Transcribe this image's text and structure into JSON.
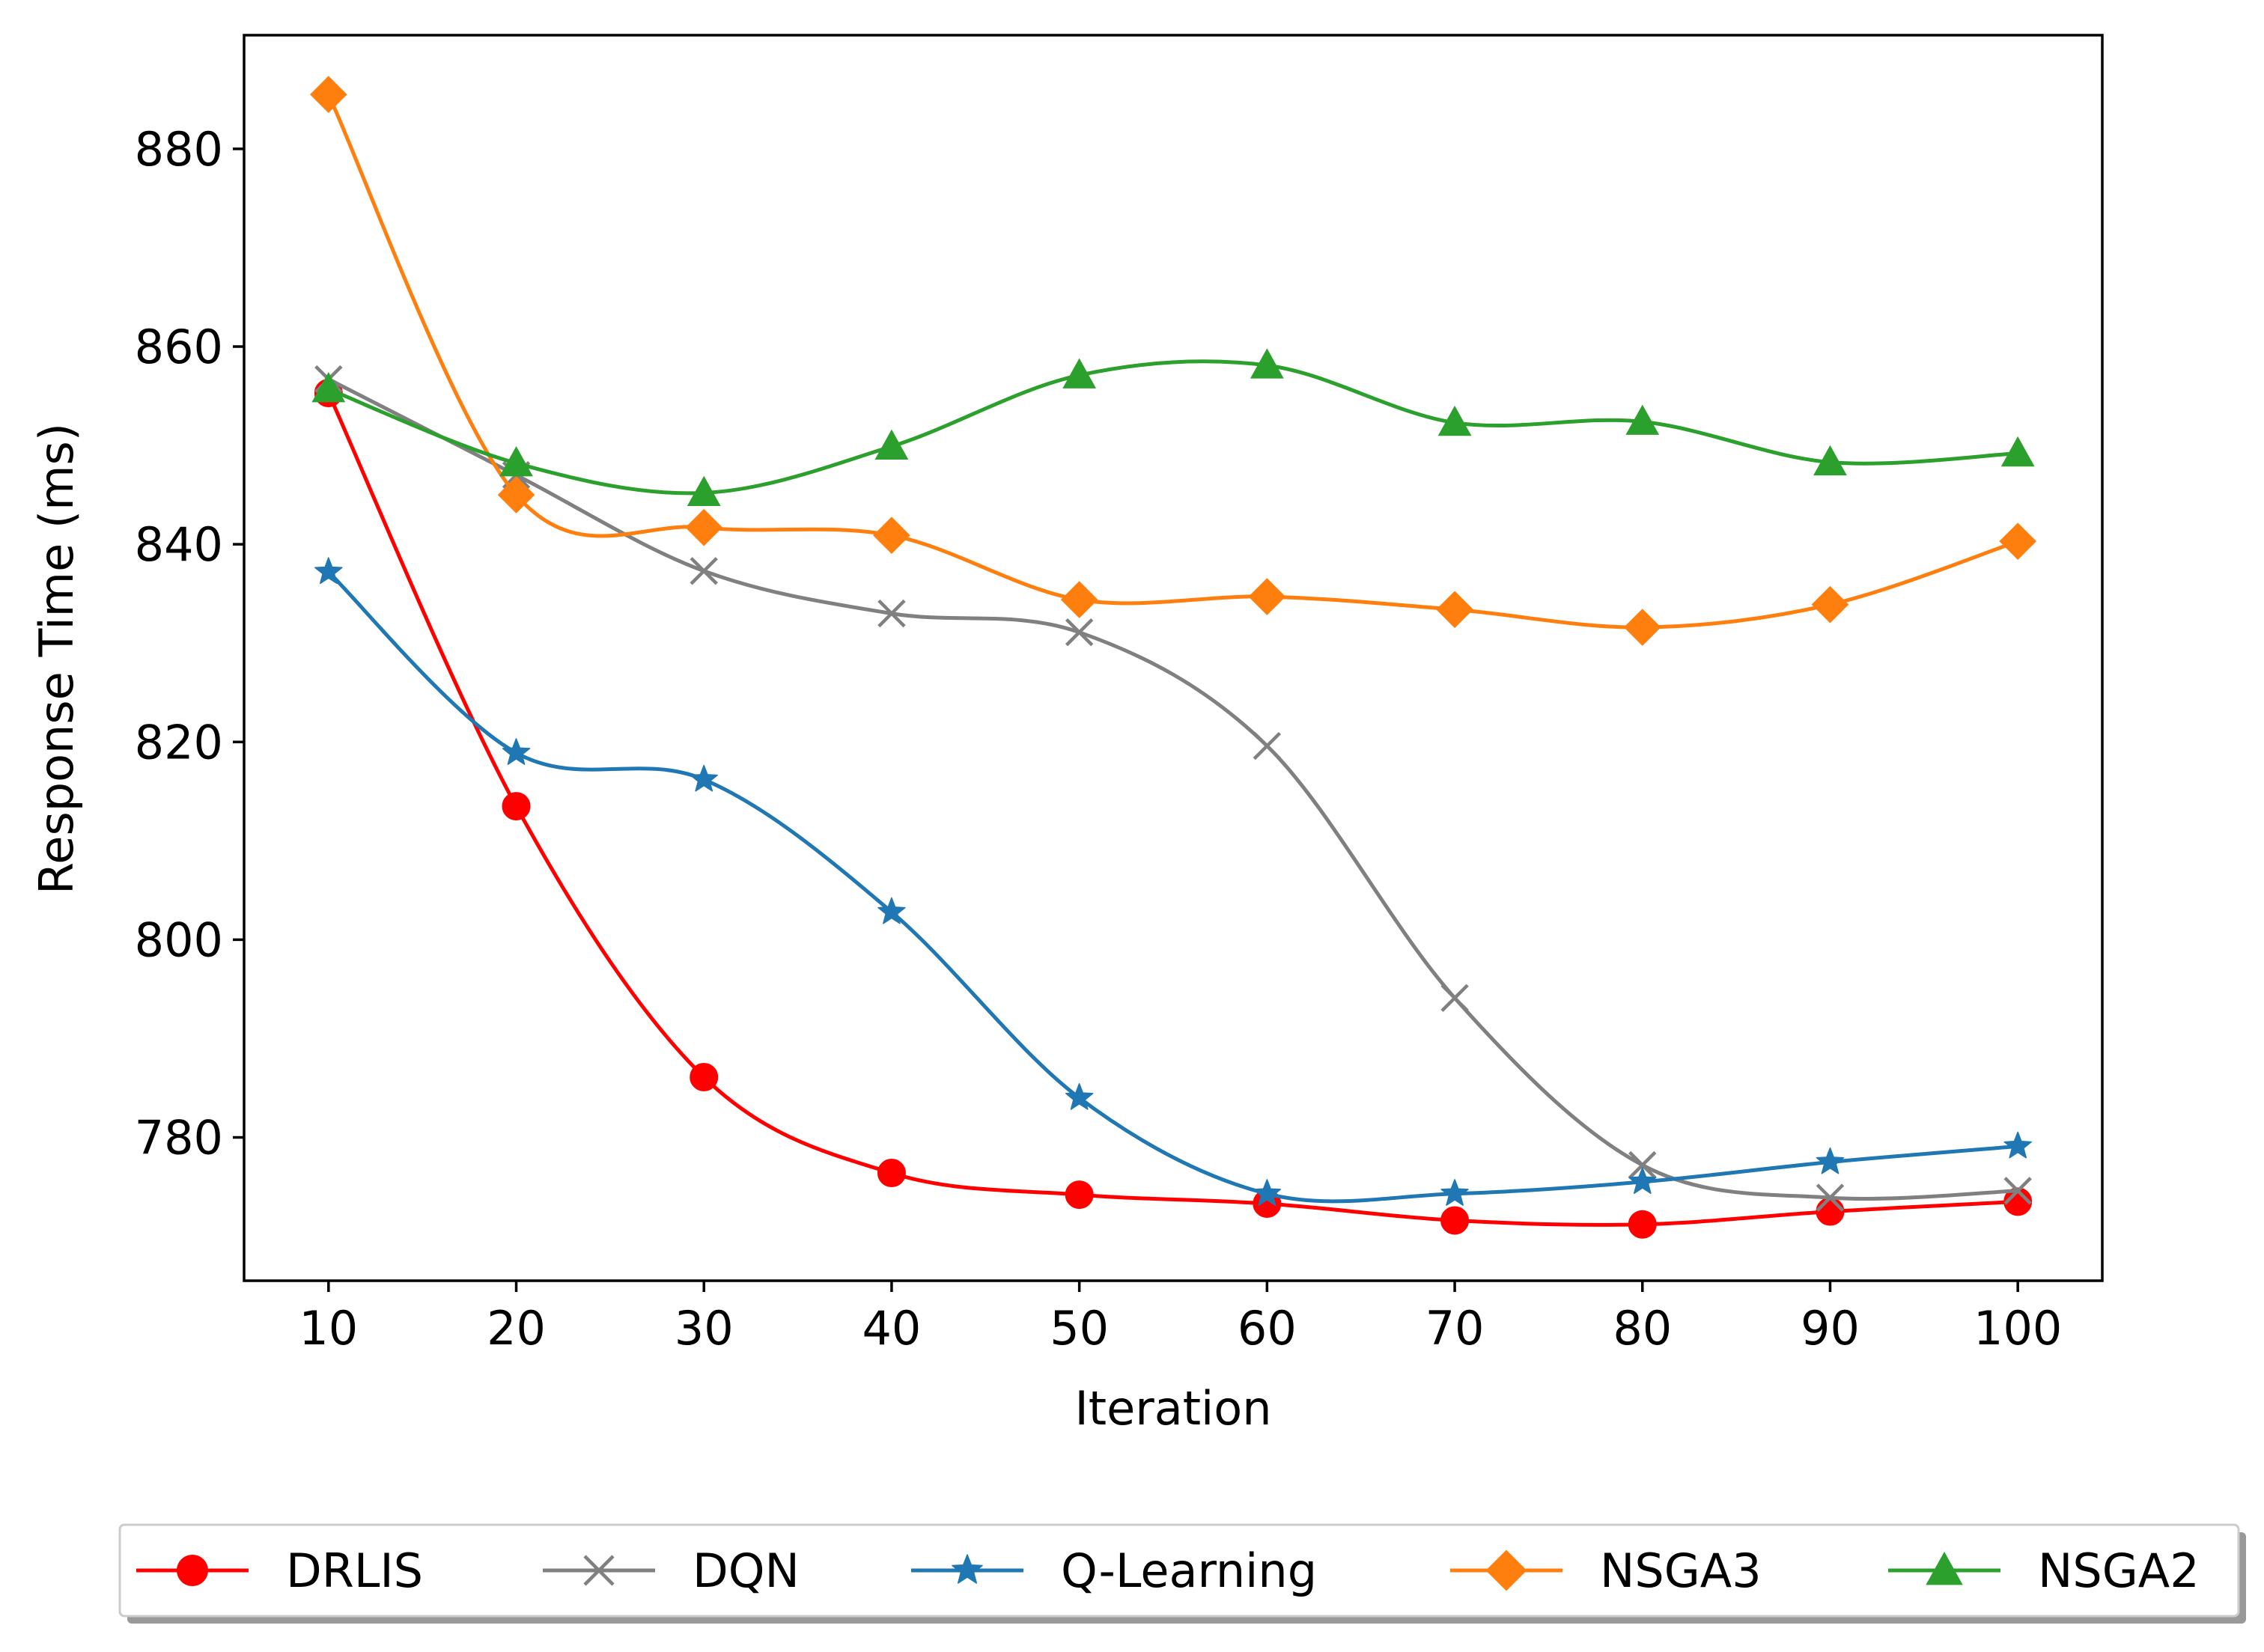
{
  "chart_data": {
    "type": "line",
    "title": "",
    "xlabel": "Iteration",
    "ylabel": "Response Time (ms)",
    "x": [
      10,
      20,
      30,
      40,
      50,
      60,
      70,
      80,
      90,
      100
    ],
    "xlim": [
      5.5,
      104.5
    ],
    "ylim": [
      765.5,
      891.5
    ],
    "xticks": [
      10,
      20,
      30,
      40,
      50,
      60,
      70,
      80,
      90,
      100
    ],
    "xtick_labels": [
      "10",
      "20",
      "30",
      "40",
      "50",
      "60",
      "70",
      "80",
      "90",
      "100"
    ],
    "yticks": [
      780,
      800,
      820,
      840,
      860,
      880
    ],
    "ytick_labels": [
      "780",
      "800",
      "820",
      "840",
      "860",
      "880"
    ],
    "grid": false,
    "legend_position": "bottom, outside plot area",
    "series": [
      {
        "name": "DRLIS",
        "color": "#ff0000",
        "marker": "circle",
        "values": [
          855.3,
          813.5,
          786.1,
          776.4,
          774.2,
          773.3,
          771.6,
          771.2,
          772.5,
          773.5
        ]
      },
      {
        "name": "DQN",
        "color": "#808080",
        "marker": "x",
        "values": [
          856.7,
          847.0,
          837.3,
          833.0,
          831.1,
          819.6,
          794.1,
          777.2,
          773.9,
          774.6
        ]
      },
      {
        "name": "Q-Learning",
        "color": "#1f77b4",
        "marker": "star",
        "values": [
          837.2,
          818.9,
          816.2,
          802.8,
          784.0,
          774.3,
          774.3,
          775.5,
          777.5,
          779.1
        ]
      },
      {
        "name": "NSGA3",
        "color": "#ff7f0e",
        "marker": "diamond",
        "values": [
          885.5,
          845.0,
          841.7,
          840.9,
          834.4,
          834.7,
          833.4,
          831.6,
          833.9,
          840.3
        ]
      },
      {
        "name": "NSGA2",
        "color": "#2ca02c",
        "marker": "triangle",
        "values": [
          855.7,
          848.2,
          845.2,
          849.9,
          857.1,
          858.1,
          852.3,
          852.4,
          848.3,
          849.2
        ]
      }
    ]
  }
}
